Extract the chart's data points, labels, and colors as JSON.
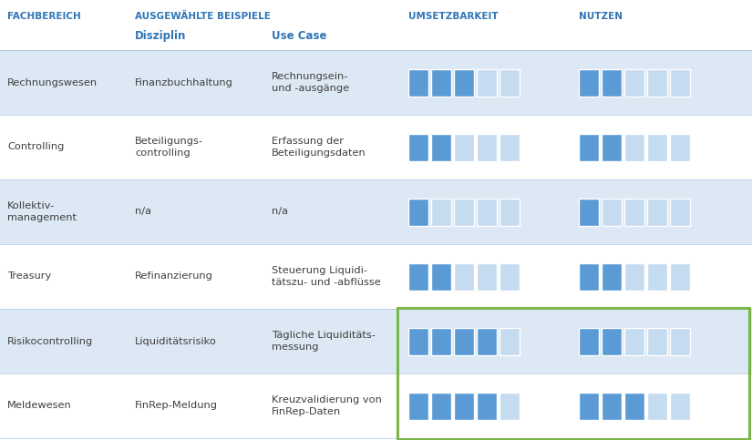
{
  "rows": [
    {
      "fachbereich": "Rechnungswesen",
      "disziplin": "Finanzbuchhaltung",
      "use_case": "Rechnungsein-\nund -ausgänge",
      "umsetzbarkeit": [
        1,
        1,
        1,
        0,
        0
      ],
      "nutzen": [
        1,
        1,
        0,
        0,
        0
      ],
      "highlight": false,
      "bg": "light"
    },
    {
      "fachbereich": "Controlling",
      "disziplin": "Beteiligungs-\ncontrolling",
      "use_case": "Erfassung der\nBeteiligungsdaten",
      "umsetzbarkeit": [
        1,
        1,
        0,
        0,
        0
      ],
      "nutzen": [
        1,
        1,
        0,
        0,
        0
      ],
      "highlight": false,
      "bg": "white"
    },
    {
      "fachbereich": "Kollektiv-\nmanagement",
      "disziplin": "n/a",
      "use_case": "n/a",
      "umsetzbarkeit": [
        1,
        0,
        0,
        0,
        0
      ],
      "nutzen": [
        1,
        0,
        0,
        0,
        0
      ],
      "highlight": false,
      "bg": "light"
    },
    {
      "fachbereich": "Treasury",
      "disziplin": "Refinanzierung",
      "use_case": "Steuerung Liquidi-\ntätszu- und -abflüsse",
      "umsetzbarkeit": [
        1,
        1,
        0,
        0,
        0
      ],
      "nutzen": [
        1,
        1,
        0,
        0,
        0
      ],
      "highlight": false,
      "bg": "white"
    },
    {
      "fachbereich": "Risikocontrolling",
      "disziplin": "Liquiditätsrisiko",
      "use_case": "Tägliche Liquiditäts-\nmessung",
      "umsetzbarkeit": [
        1,
        1,
        1,
        1,
        0
      ],
      "nutzen": [
        1,
        1,
        0,
        0,
        0
      ],
      "highlight": true,
      "bg": "light"
    },
    {
      "fachbereich": "Meldewesen",
      "disziplin": "FinRep-Meldung",
      "use_case": "Kreuzvalidierung von\nFinRep-Daten",
      "umsetzbarkeit": [
        1,
        1,
        1,
        1,
        0
      ],
      "nutzen": [
        1,
        1,
        1,
        0,
        0
      ],
      "highlight": true,
      "bg": "white"
    }
  ],
  "color_blue": "#5b9bd5",
  "color_light_blue_box": "#c5dcf0",
  "color_row_light": "#dce8f4",
  "color_row_white": "#ffffff",
  "color_header_text": "#2e75b6",
  "color_body_text": "#404040",
  "color_highlight_border": "#7ab648",
  "color_separator": "#adc8e0"
}
